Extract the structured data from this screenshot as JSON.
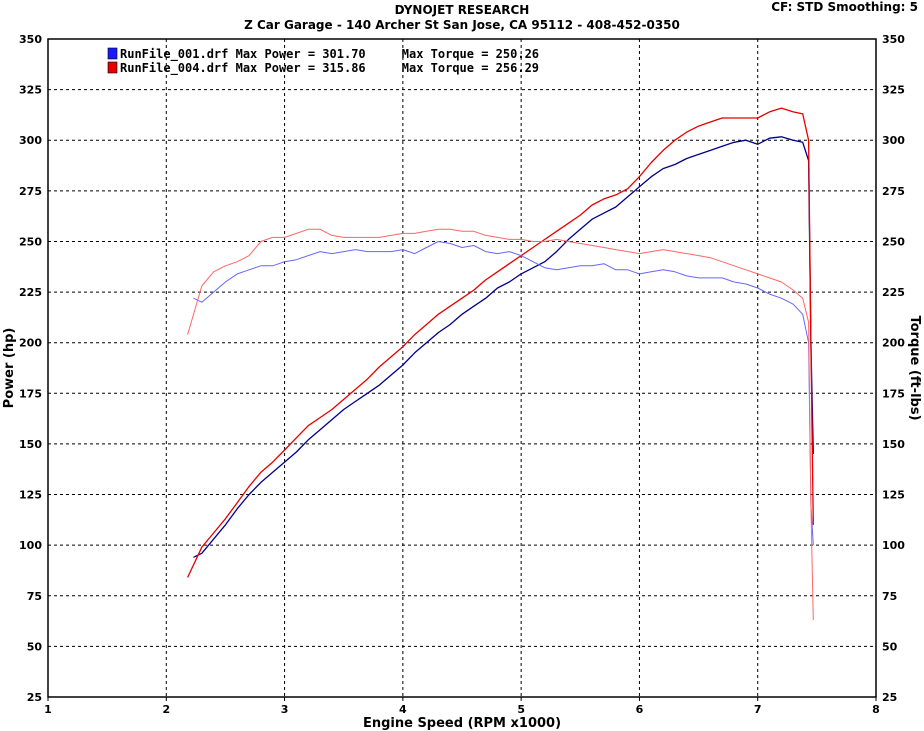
{
  "header": {
    "title": "DYNOJET RESEARCH",
    "subtitle": "Z Car Garage - 140 Archer St San Jose, CA 95112 - 408-452-0350",
    "settings": "CF: STD  Smoothing: 5"
  },
  "chart_data": {
    "type": "line",
    "xlabel": "Engine Speed (RPM x1000)",
    "ylabel_left": "Power (hp)",
    "ylabel_right": "Torque (ft-lbs)",
    "xlim": [
      1,
      8
    ],
    "ylim": [
      25,
      350
    ],
    "x_ticks": [
      "1",
      "2",
      "3",
      "4",
      "5",
      "6",
      "7",
      "8"
    ],
    "y_ticks": [
      "25",
      "50",
      "75",
      "100",
      "125",
      "150",
      "175",
      "200",
      "225",
      "250",
      "275",
      "300",
      "325",
      "350"
    ],
    "grid": true,
    "legend_position": "top-left",
    "legend": [
      {
        "label": "RunFile_001.drf Max Power = 301.70     Max Torque = 250.26",
        "color": "#1a1aff"
      },
      {
        "label": "RunFile_004.drf Max Power = 315.86     Max Torque = 256.29",
        "color": "#e60000"
      }
    ],
    "series": [
      {
        "name": "RunFile_001.drf",
        "measure": "power",
        "color": "#00008b",
        "x": [
          2.23,
          2.3,
          2.4,
          2.5,
          2.6,
          2.7,
          2.8,
          2.9,
          3.0,
          3.1,
          3.2,
          3.3,
          3.4,
          3.5,
          3.6,
          3.7,
          3.8,
          3.9,
          4.0,
          4.1,
          4.2,
          4.3,
          4.4,
          4.5,
          4.6,
          4.7,
          4.8,
          4.9,
          5.0,
          5.1,
          5.2,
          5.3,
          5.4,
          5.5,
          5.6,
          5.7,
          5.8,
          5.9,
          6.0,
          6.1,
          6.2,
          6.3,
          6.4,
          6.5,
          6.6,
          6.7,
          6.8,
          6.9,
          7.0,
          7.1,
          7.2,
          7.3,
          7.38,
          7.43,
          7.45,
          7.47
        ],
        "values": [
          94,
          96,
          103,
          110,
          118,
          125,
          131,
          136,
          141,
          146,
          152,
          157,
          162,
          167,
          171,
          175,
          179,
          184,
          189,
          195,
          200,
          205,
          209,
          214,
          218,
          222,
          227,
          230,
          234,
          237,
          240,
          245,
          251,
          256,
          261,
          264,
          267,
          272,
          277,
          282,
          286,
          288,
          291,
          293,
          295,
          297,
          299,
          300,
          298,
          301,
          301.7,
          300,
          299,
          290,
          200,
          145
        ]
      },
      {
        "name": "RunFile_004.drf",
        "measure": "power",
        "color": "#e60000",
        "x": [
          2.18,
          2.3,
          2.4,
          2.5,
          2.6,
          2.7,
          2.8,
          2.9,
          3.0,
          3.1,
          3.2,
          3.3,
          3.4,
          3.5,
          3.6,
          3.7,
          3.8,
          3.9,
          4.0,
          4.1,
          4.2,
          4.3,
          4.4,
          4.5,
          4.6,
          4.7,
          4.8,
          4.9,
          5.0,
          5.1,
          5.2,
          5.3,
          5.4,
          5.5,
          5.6,
          5.7,
          5.8,
          5.9,
          6.0,
          6.1,
          6.2,
          6.3,
          6.4,
          6.5,
          6.6,
          6.7,
          6.8,
          6.9,
          7.0,
          7.1,
          7.2,
          7.3,
          7.38,
          7.43,
          7.45,
          7.47
        ],
        "values": [
          84,
          99,
          106,
          113,
          121,
          129,
          136,
          141,
          147,
          153,
          159,
          163,
          167,
          172,
          177,
          182,
          188,
          193,
          198,
          204,
          209,
          214,
          218,
          222,
          226,
          231,
          235,
          239,
          243,
          247,
          251,
          255,
          259,
          263,
          268,
          271,
          273,
          276,
          282,
          289,
          295,
          300,
          304,
          307,
          309,
          311,
          311,
          311,
          311,
          314,
          315.86,
          314,
          313,
          300,
          200,
          110
        ]
      },
      {
        "name": "RunFile_001.drf",
        "measure": "torque",
        "color": "#6666ff",
        "x": [
          2.23,
          2.3,
          2.4,
          2.5,
          2.6,
          2.7,
          2.8,
          2.9,
          3.0,
          3.1,
          3.2,
          3.3,
          3.4,
          3.5,
          3.6,
          3.7,
          3.8,
          3.9,
          4.0,
          4.1,
          4.2,
          4.3,
          4.4,
          4.5,
          4.6,
          4.7,
          4.8,
          4.9,
          5.0,
          5.1,
          5.2,
          5.3,
          5.4,
          5.5,
          5.6,
          5.7,
          5.8,
          5.9,
          6.0,
          6.1,
          6.2,
          6.3,
          6.4,
          6.5,
          6.6,
          6.7,
          6.8,
          6.9,
          7.0,
          7.1,
          7.2,
          7.3,
          7.38,
          7.43,
          7.45,
          7.47
        ],
        "values": [
          222,
          220,
          225,
          230,
          234,
          236,
          238,
          238,
          240,
          241,
          243,
          245,
          244,
          245,
          246,
          245,
          245,
          245,
          246,
          244,
          247,
          250,
          249,
          247,
          248,
          245,
          244,
          245,
          243,
          240,
          237,
          236,
          237,
          238,
          238,
          239,
          236,
          236,
          234,
          235,
          236,
          235,
          233,
          232,
          232,
          232,
          230,
          229,
          227,
          224,
          222,
          219,
          214,
          200,
          120,
          100
        ]
      },
      {
        "name": "RunFile_004.drf",
        "measure": "torque",
        "color": "#ff6666",
        "x": [
          2.18,
          2.3,
          2.4,
          2.5,
          2.6,
          2.7,
          2.8,
          2.9,
          3.0,
          3.1,
          3.2,
          3.3,
          3.4,
          3.5,
          3.6,
          3.7,
          3.8,
          3.9,
          4.0,
          4.1,
          4.2,
          4.3,
          4.4,
          4.5,
          4.6,
          4.7,
          4.8,
          4.9,
          5.0,
          5.1,
          5.2,
          5.3,
          5.4,
          5.5,
          5.6,
          5.7,
          5.8,
          5.9,
          6.0,
          6.1,
          6.2,
          6.3,
          6.4,
          6.5,
          6.6,
          6.7,
          6.8,
          6.9,
          7.0,
          7.1,
          7.2,
          7.3,
          7.38,
          7.43,
          7.45,
          7.47
        ],
        "values": [
          204,
          228,
          235,
          238,
          240,
          243,
          250,
          252,
          252,
          254,
          256,
          256,
          253,
          252,
          252,
          252,
          252,
          253,
          254,
          254,
          255,
          256,
          256,
          255,
          255,
          253,
          252,
          251,
          251,
          250,
          250,
          251,
          250,
          249,
          248,
          247,
          246,
          245,
          244,
          245,
          246,
          245,
          244,
          243,
          242,
          240,
          238,
          236,
          234,
          232,
          230,
          226,
          222,
          210,
          120,
          63
        ]
      }
    ]
  }
}
